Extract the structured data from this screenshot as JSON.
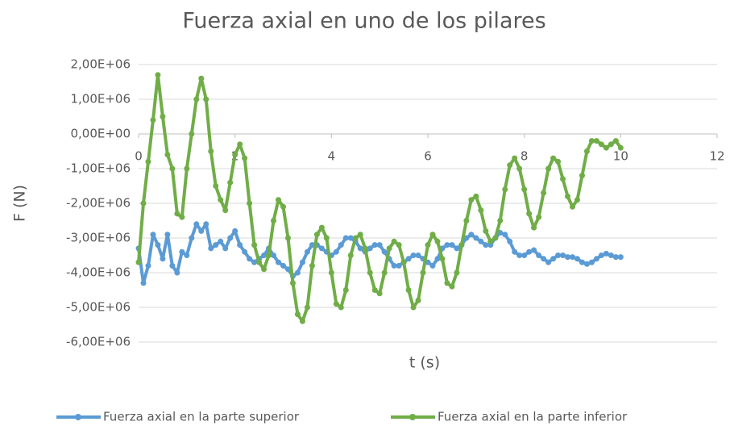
{
  "chart_data": {
    "type": "line",
    "title": "Fuerza axial en uno de los pilares",
    "x_label": "t (s)",
    "y_label": "F (N)",
    "x": [
      0,
      0.1,
      0.2,
      0.3,
      0.4,
      0.5,
      0.6,
      0.7,
      0.8,
      0.9,
      1,
      1.1,
      1.2,
      1.3,
      1.4,
      1.5,
      1.6,
      1.7,
      1.8,
      1.9,
      2,
      2.1,
      2.2,
      2.3,
      2.4,
      2.5,
      2.6,
      2.7,
      2.8,
      2.9,
      3,
      3.1,
      3.2,
      3.3,
      3.4,
      3.5,
      3.6,
      3.7,
      3.8,
      3.9,
      4,
      4.1,
      4.2,
      4.3,
      4.4,
      4.5,
      4.6,
      4.7,
      4.8,
      4.9,
      5,
      5.1,
      5.2,
      5.3,
      5.4,
      5.5,
      5.6,
      5.7,
      5.8,
      5.9,
      6,
      6.1,
      6.2,
      6.3,
      6.4,
      6.5,
      6.6,
      6.7,
      6.8,
      6.9,
      7,
      7.1,
      7.2,
      7.3,
      7.4,
      7.5,
      7.6,
      7.7,
      7.8,
      7.9,
      8,
      8.1,
      8.2,
      8.3,
      8.4,
      8.5,
      8.6,
      8.7,
      8.8,
      8.9,
      9,
      9.1,
      9.2,
      9.3,
      9.4,
      9.5,
      9.6,
      9.7,
      9.8,
      9.9,
      10
    ],
    "series": [
      {
        "name": "Fuerza axial en la parte superior",
        "color": "#5b9bd5",
        "values": [
          -3300000.0,
          -4300000.0,
          -3800000.0,
          -2900000.0,
          -3200000.0,
          -3600000.0,
          -2900000.0,
          -3800000.0,
          -4000000.0,
          -3400000.0,
          -3500000.0,
          -3000000.0,
          -2600000.0,
          -2800000.0,
          -2600000.0,
          -3300000.0,
          -3200000.0,
          -3100000.0,
          -3300000.0,
          -3000000.0,
          -2800000.0,
          -3200000.0,
          -3400000.0,
          -3600000.0,
          -3700000.0,
          -3600000.0,
          -3500000.0,
          -3300000.0,
          -3500000.0,
          -3700000.0,
          -3800000.0,
          -3900000.0,
          -4100000.0,
          -4000000.0,
          -3700000.0,
          -3400000.0,
          -3200000.0,
          -3200000.0,
          -3300000.0,
          -3400000.0,
          -3500000.0,
          -3400000.0,
          -3200000.0,
          -3000000.0,
          -3000000.0,
          -3100000.0,
          -3300000.0,
          -3400000.0,
          -3300000.0,
          -3200000.0,
          -3200000.0,
          -3400000.0,
          -3600000.0,
          -3800000.0,
          -3800000.0,
          -3700000.0,
          -3600000.0,
          -3500000.0,
          -3500000.0,
          -3600000.0,
          -3700000.0,
          -3800000.0,
          -3600000.0,
          -3300000.0,
          -3200000.0,
          -3200000.0,
          -3300000.0,
          -3200000.0,
          -3000000.0,
          -2900000.0,
          -3000000.0,
          -3100000.0,
          -3200000.0,
          -3200000.0,
          -3000000.0,
          -2850000.0,
          -2900000.0,
          -3100000.0,
          -3400000.0,
          -3500000.0,
          -3500000.0,
          -3400000.0,
          -3350000.0,
          -3500000.0,
          -3600000.0,
          -3700000.0,
          -3600000.0,
          -3500000.0,
          -3500000.0,
          -3550000.0,
          -3550000.0,
          -3600000.0,
          -3700000.0,
          -3750000.0,
          -3700000.0,
          -3600000.0,
          -3500000.0,
          -3450000.0,
          -3500000.0,
          -3550000.0,
          -3550000.0
        ]
      },
      {
        "name": "Fuerza axial en la parte inferior",
        "color": "#70ad47",
        "values": [
          -3700000.0,
          -2000000.0,
          -800000.0,
          400000.0,
          1700000.0,
          500000.0,
          -600000.0,
          -1000000.0,
          -2300000.0,
          -2400000.0,
          -1000000.0,
          0.0,
          1000000.0,
          1600000.0,
          1000000.0,
          -500000.0,
          -1500000.0,
          -1900000.0,
          -2200000.0,
          -1400000.0,
          -600000.0,
          -300000.0,
          -700000.0,
          -2000000.0,
          -3200000.0,
          -3700000.0,
          -3900000.0,
          -3500000.0,
          -2500000.0,
          -1900000.0,
          -2100000.0,
          -3000000.0,
          -4300000.0,
          -5200000.0,
          -5400000.0,
          -5000000.0,
          -3800000.0,
          -2900000.0,
          -2700000.0,
          -3000000.0,
          -4000000.0,
          -4900000.0,
          -5000000.0,
          -4500000.0,
          -3500000.0,
          -3000000.0,
          -2900000.0,
          -3300000.0,
          -4000000.0,
          -4500000.0,
          -4600000.0,
          -4000000.0,
          -3300000.0,
          -3100000.0,
          -3200000.0,
          -3700000.0,
          -4500000.0,
          -5000000.0,
          -4800000.0,
          -4000000.0,
          -3200000.0,
          -2900000.0,
          -3100000.0,
          -3600000.0,
          -4300000.0,
          -4400000.0,
          -4000000.0,
          -3200000.0,
          -2500000.0,
          -1900000.0,
          -1800000.0,
          -2200000.0,
          -2800000.0,
          -3100000.0,
          -3000000.0,
          -2500000.0,
          -1600000.0,
          -900000.0,
          -700000.0,
          -1000000.0,
          -1600000.0,
          -2300000.0,
          -2700000.0,
          -2400000.0,
          -1700000.0,
          -1000000.0,
          -700000.0,
          -800000.0,
          -1300000.0,
          -1800000.0,
          -2100000.0,
          -1900000.0,
          -1200000.0,
          -500000.0,
          -200000.0,
          -200000.0,
          -300000.0,
          -400000.0,
          -300000.0,
          -200000.0,
          -400000.0
        ]
      }
    ],
    "xlim": [
      0,
      12
    ],
    "xticks": [
      0,
      2,
      4,
      6,
      8,
      10,
      12
    ],
    "ylim": [
      -6000000.0,
      2000000.0
    ],
    "yticks": [
      {
        "value": 2000000.0,
        "label": "2,00E+06"
      },
      {
        "value": 1000000.0,
        "label": "1,00E+06"
      },
      {
        "value": 0,
        "label": "0,00E+00"
      },
      {
        "value": -1000000.0,
        "label": "-1,00E+06"
      },
      {
        "value": -2000000.0,
        "label": "-2,00E+06"
      },
      {
        "value": -3000000.0,
        "label": "-3,00E+06"
      },
      {
        "value": -4000000.0,
        "label": "-4,00E+06"
      },
      {
        "value": -5000000.0,
        "label": "-5,00E+06"
      },
      {
        "value": -6000000.0,
        "label": "-6,00E+06"
      }
    ],
    "grid": true,
    "legend": "bottom"
  }
}
